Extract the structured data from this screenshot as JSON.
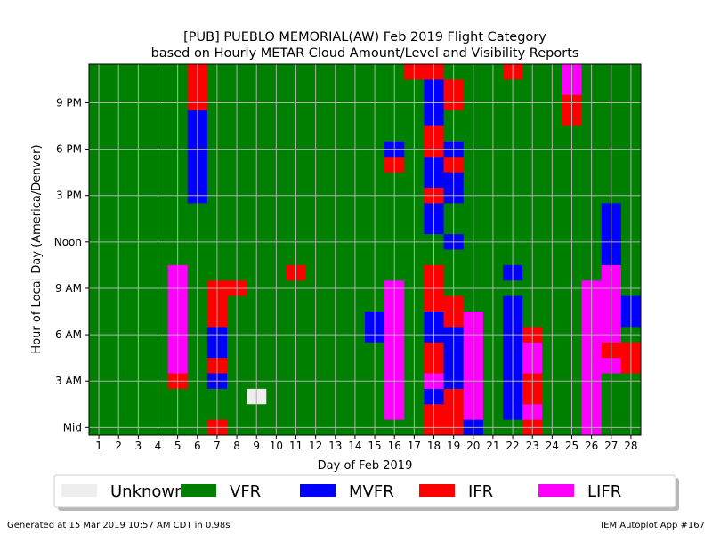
{
  "chart_data": {
    "type": "heatmap",
    "title_line1": "[PUB] PUEBLO MEMORIAL(AW) Feb 2019 Flight Category",
    "title_line2": "based on Hourly METAR Cloud Amount/Level and Visibility Reports",
    "xlabel": "Day of Feb 2019",
    "ylabel": "Hour of Local Day (America/Denver)",
    "x_categories": [
      "1",
      "2",
      "3",
      "4",
      "5",
      "6",
      "7",
      "8",
      "9",
      "10",
      "11",
      "12",
      "13",
      "14",
      "15",
      "16",
      "17",
      "18",
      "19",
      "20",
      "21",
      "22",
      "23",
      "24",
      "25",
      "26",
      "27",
      "28"
    ],
    "y_range": [
      0,
      23
    ],
    "y_ticks": [
      {
        "hour": 0,
        "label": "Mid"
      },
      {
        "hour": 3,
        "label": "3 AM"
      },
      {
        "hour": 6,
        "label": "6 AM"
      },
      {
        "hour": 9,
        "label": "9 AM"
      },
      {
        "hour": 12,
        "label": "Noon"
      },
      {
        "hour": 15,
        "label": "3 PM"
      },
      {
        "hour": 18,
        "label": "6 PM"
      },
      {
        "hour": 21,
        "label": "9 PM"
      }
    ],
    "categories": [
      {
        "name": "Unknown",
        "color": "#eeeeee"
      },
      {
        "name": "VFR",
        "color": "#008000"
      },
      {
        "name": "MVFR",
        "color": "#0000ff"
      },
      {
        "name": "IFR",
        "color": "#ff0000"
      },
      {
        "name": "LIFR",
        "color": "#ff00ff"
      }
    ],
    "default_category": "VFR",
    "grid": true,
    "legend_position": "below",
    "cells": [
      {
        "day": 5,
        "from": 3,
        "to": 3,
        "cat": "IFR"
      },
      {
        "day": 5,
        "from": 4,
        "to": 10,
        "cat": "LIFR"
      },
      {
        "day": 6,
        "from": 15,
        "to": 20,
        "cat": "MVFR"
      },
      {
        "day": 6,
        "from": 21,
        "to": 23,
        "cat": "IFR"
      },
      {
        "day": 7,
        "from": 0,
        "to": 0,
        "cat": "IFR"
      },
      {
        "day": 7,
        "from": 3,
        "to": 3,
        "cat": "MVFR"
      },
      {
        "day": 7,
        "from": 4,
        "to": 4,
        "cat": "IFR"
      },
      {
        "day": 7,
        "from": 5,
        "to": 6,
        "cat": "MVFR"
      },
      {
        "day": 7,
        "from": 7,
        "to": 9,
        "cat": "IFR"
      },
      {
        "day": 8,
        "from": 9,
        "to": 9,
        "cat": "IFR"
      },
      {
        "day": 9,
        "from": 2,
        "to": 2,
        "cat": "Unknown"
      },
      {
        "day": 11,
        "from": 10,
        "to": 10,
        "cat": "IFR"
      },
      {
        "day": 15,
        "from": 6,
        "to": 7,
        "cat": "MVFR"
      },
      {
        "day": 16,
        "from": 1,
        "to": 9,
        "cat": "LIFR"
      },
      {
        "day": 16,
        "from": 17,
        "to": 17,
        "cat": "IFR"
      },
      {
        "day": 16,
        "from": 18,
        "to": 18,
        "cat": "MVFR"
      },
      {
        "day": 17,
        "from": 23,
        "to": 23,
        "cat": "IFR"
      },
      {
        "day": 18,
        "from": 0,
        "to": 1,
        "cat": "IFR"
      },
      {
        "day": 18,
        "from": 2,
        "to": 2,
        "cat": "MVFR"
      },
      {
        "day": 18,
        "from": 3,
        "to": 3,
        "cat": "LIFR"
      },
      {
        "day": 18,
        "from": 4,
        "to": 5,
        "cat": "IFR"
      },
      {
        "day": 18,
        "from": 6,
        "to": 7,
        "cat": "MVFR"
      },
      {
        "day": 18,
        "from": 8,
        "to": 10,
        "cat": "IFR"
      },
      {
        "day": 18,
        "from": 13,
        "to": 14,
        "cat": "MVFR"
      },
      {
        "day": 18,
        "from": 15,
        "to": 15,
        "cat": "IFR"
      },
      {
        "day": 18,
        "from": 16,
        "to": 17,
        "cat": "MVFR"
      },
      {
        "day": 18,
        "from": 18,
        "to": 19,
        "cat": "IFR"
      },
      {
        "day": 18,
        "from": 20,
        "to": 22,
        "cat": "MVFR"
      },
      {
        "day": 18,
        "from": 23,
        "to": 23,
        "cat": "IFR"
      },
      {
        "day": 19,
        "from": 0,
        "to": 2,
        "cat": "IFR"
      },
      {
        "day": 19,
        "from": 3,
        "to": 6,
        "cat": "MVFR"
      },
      {
        "day": 19,
        "from": 7,
        "to": 8,
        "cat": "IFR"
      },
      {
        "day": 19,
        "from": 12,
        "to": 12,
        "cat": "MVFR"
      },
      {
        "day": 19,
        "from": 15,
        "to": 16,
        "cat": "MVFR"
      },
      {
        "day": 19,
        "from": 17,
        "to": 17,
        "cat": "IFR"
      },
      {
        "day": 19,
        "from": 18,
        "to": 18,
        "cat": "MVFR"
      },
      {
        "day": 19,
        "from": 21,
        "to": 22,
        "cat": "IFR"
      },
      {
        "day": 20,
        "from": 0,
        "to": 0,
        "cat": "MVFR"
      },
      {
        "day": 20,
        "from": 1,
        "to": 7,
        "cat": "LIFR"
      },
      {
        "day": 22,
        "from": 1,
        "to": 8,
        "cat": "MVFR"
      },
      {
        "day": 22,
        "from": 10,
        "to": 10,
        "cat": "MVFR"
      },
      {
        "day": 22,
        "from": 23,
        "to": 23,
        "cat": "IFR"
      },
      {
        "day": 23,
        "from": 0,
        "to": 0,
        "cat": "IFR"
      },
      {
        "day": 23,
        "from": 1,
        "to": 1,
        "cat": "LIFR"
      },
      {
        "day": 23,
        "from": 2,
        "to": 3,
        "cat": "IFR"
      },
      {
        "day": 23,
        "from": 4,
        "to": 5,
        "cat": "LIFR"
      },
      {
        "day": 23,
        "from": 6,
        "to": 6,
        "cat": "IFR"
      },
      {
        "day": 25,
        "from": 20,
        "to": 21,
        "cat": "IFR"
      },
      {
        "day": 25,
        "from": 22,
        "to": 23,
        "cat": "LIFR"
      },
      {
        "day": 26,
        "from": 0,
        "to": 9,
        "cat": "LIFR"
      },
      {
        "day": 27,
        "from": 4,
        "to": 4,
        "cat": "LIFR"
      },
      {
        "day": 27,
        "from": 5,
        "to": 5,
        "cat": "IFR"
      },
      {
        "day": 27,
        "from": 6,
        "to": 10,
        "cat": "LIFR"
      },
      {
        "day": 27,
        "from": 11,
        "to": 14,
        "cat": "MVFR"
      },
      {
        "day": 28,
        "from": 4,
        "to": 5,
        "cat": "IFR"
      },
      {
        "day": 28,
        "from": 7,
        "to": 8,
        "cat": "MVFR"
      }
    ]
  },
  "footer": {
    "left": "Generated at 15 Mar 2019 10:57 AM CDT in 0.98s",
    "right": "IEM Autoplot App #167"
  }
}
